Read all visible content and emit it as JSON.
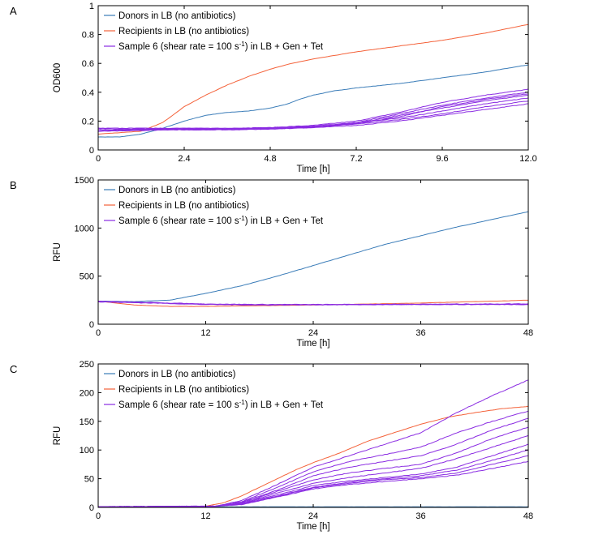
{
  "legend_labels": {
    "donors": "Donors in LB (no antibiotics)",
    "recipients": "Recipients in LB (no antibiotics)",
    "sample_prefix": "Sample 6 (shear rate = 100 s",
    "sample_sup": "-1",
    "sample_suffix": ") in LB + Gen + Tet"
  },
  "colors": {
    "donors": "#3a7cb8",
    "recipients": "#f4623a",
    "sample": "#8a2be2"
  },
  "chart_data": [
    {
      "panel": "A",
      "type": "line",
      "xlabel": "Time [h]",
      "ylabel": "OD600",
      "xlim": [
        0,
        12
      ],
      "ylim": [
        0,
        1
      ],
      "xticks": [
        0,
        2.4,
        4.8,
        7.2,
        9.6,
        12
      ],
      "xtick_labels": [
        "0",
        "2.4",
        "4.8",
        "7.2",
        "9.6",
        "12.0"
      ],
      "yticks": [
        0,
        0.2,
        0.4,
        0.6,
        0.8,
        1
      ],
      "ytick_labels": [
        "0",
        "0.2",
        "0.4",
        "0.6",
        "0.8",
        "1"
      ],
      "legend_position": "top-left",
      "series": [
        {
          "name": "donors",
          "x": [
            0,
            0.6,
            1.2,
            1.8,
            2.4,
            3.0,
            3.6,
            4.2,
            4.8,
            5.3,
            5.6,
            6.0,
            6.6,
            7.2,
            8.4,
            9.6,
            10.8,
            12.0
          ],
          "y": [
            0.09,
            0.09,
            0.11,
            0.15,
            0.2,
            0.24,
            0.26,
            0.27,
            0.29,
            0.32,
            0.35,
            0.38,
            0.41,
            0.43,
            0.46,
            0.5,
            0.54,
            0.59
          ]
        },
        {
          "name": "recipients",
          "x": [
            0,
            0.6,
            1.2,
            1.8,
            2.4,
            3.0,
            3.6,
            4.2,
            4.8,
            5.4,
            6.0,
            7.2,
            8.4,
            9.6,
            10.8,
            12.0
          ],
          "y": [
            0.11,
            0.12,
            0.13,
            0.19,
            0.3,
            0.38,
            0.45,
            0.51,
            0.56,
            0.6,
            0.63,
            0.68,
            0.72,
            0.76,
            0.81,
            0.87
          ]
        },
        {
          "name": "sample",
          "x": [
            0,
            1.2,
            2.4,
            3.6,
            4.8,
            6.0,
            7.2,
            8.4,
            9.6,
            10.8,
            12.0
          ],
          "y": [
            0.15,
            0.15,
            0.15,
            0.15,
            0.155,
            0.17,
            0.2,
            0.26,
            0.33,
            0.38,
            0.42
          ]
        },
        {
          "name": "sample",
          "x": [
            0,
            1.2,
            2.4,
            3.6,
            4.8,
            6.0,
            7.2,
            8.4,
            9.6,
            10.8,
            12.0
          ],
          "y": [
            0.14,
            0.145,
            0.145,
            0.145,
            0.15,
            0.16,
            0.19,
            0.25,
            0.31,
            0.36,
            0.4
          ]
        },
        {
          "name": "sample",
          "x": [
            0,
            1.2,
            2.4,
            3.6,
            4.8,
            6.0,
            7.2,
            8.4,
            9.6,
            10.8,
            12.0
          ],
          "y": [
            0.13,
            0.14,
            0.14,
            0.14,
            0.145,
            0.155,
            0.18,
            0.23,
            0.3,
            0.35,
            0.39
          ]
        },
        {
          "name": "sample",
          "x": [
            0,
            1.2,
            2.4,
            3.6,
            4.8,
            6.0,
            7.2,
            8.4,
            9.6,
            10.8,
            12.0
          ],
          "y": [
            0.14,
            0.14,
            0.145,
            0.145,
            0.15,
            0.16,
            0.185,
            0.24,
            0.29,
            0.34,
            0.38
          ]
        },
        {
          "name": "sample",
          "x": [
            0,
            1.2,
            2.4,
            3.6,
            4.8,
            6.0,
            7.2,
            8.4,
            9.6,
            10.8,
            12.0
          ],
          "y": [
            0.15,
            0.15,
            0.15,
            0.15,
            0.155,
            0.165,
            0.19,
            0.22,
            0.27,
            0.32,
            0.36
          ]
        },
        {
          "name": "sample",
          "x": [
            0,
            1.2,
            2.4,
            3.6,
            4.8,
            6.0,
            7.2,
            8.4,
            9.6,
            10.8,
            12.0
          ],
          "y": [
            0.14,
            0.14,
            0.14,
            0.145,
            0.15,
            0.16,
            0.18,
            0.21,
            0.25,
            0.3,
            0.34
          ]
        },
        {
          "name": "sample",
          "x": [
            0,
            1.2,
            2.4,
            3.6,
            4.8,
            6.0,
            7.2,
            8.4,
            9.6,
            10.8,
            12.0
          ],
          "y": [
            0.13,
            0.135,
            0.14,
            0.14,
            0.145,
            0.155,
            0.17,
            0.2,
            0.24,
            0.28,
            0.32
          ]
        }
      ]
    },
    {
      "panel": "B",
      "type": "line",
      "xlabel": "Time [h]",
      "ylabel": "RFU",
      "xlim": [
        0,
        48
      ],
      "ylim": [
        0,
        1500
      ],
      "xticks": [
        0,
        12,
        24,
        36,
        48
      ],
      "xtick_labels": [
        "0",
        "12",
        "24",
        "36",
        "48"
      ],
      "yticks": [
        0,
        500,
        1000,
        1500
      ],
      "ytick_labels": [
        "0",
        "500",
        "1000",
        "1500"
      ],
      "legend_position": "top-left",
      "series": [
        {
          "name": "donors",
          "x": [
            0,
            4,
            8,
            12,
            16,
            20,
            24,
            28,
            32,
            36,
            40,
            44,
            48
          ],
          "y": [
            240,
            235,
            250,
            320,
            400,
            500,
            610,
            720,
            830,
            920,
            1010,
            1090,
            1170
          ]
        },
        {
          "name": "recipients",
          "x": [
            0,
            4,
            8,
            12,
            16,
            20,
            24,
            30,
            36,
            42,
            48
          ],
          "y": [
            240,
            200,
            185,
            185,
            190,
            195,
            200,
            210,
            220,
            235,
            250
          ]
        },
        {
          "name": "sample",
          "x": [
            0,
            6,
            12,
            18,
            24,
            30,
            36,
            42,
            48
          ],
          "y": [
            240,
            225,
            210,
            205,
            205,
            205,
            205,
            205,
            205
          ]
        },
        {
          "name": "sample",
          "x": [
            0,
            6,
            12,
            18,
            24,
            30,
            36,
            42,
            48
          ],
          "y": [
            232,
            220,
            205,
            200,
            202,
            203,
            205,
            206,
            207
          ]
        },
        {
          "name": "sample",
          "x": [
            0,
            6,
            12,
            18,
            24,
            30,
            36,
            42,
            48
          ],
          "y": [
            236,
            222,
            208,
            203,
            204,
            206,
            208,
            210,
            212
          ]
        }
      ]
    },
    {
      "panel": "C",
      "type": "line",
      "xlabel": "Time [h]",
      "ylabel": "RFU",
      "xlim": [
        0,
        48
      ],
      "ylim": [
        0,
        250
      ],
      "xticks": [
        0,
        12,
        24,
        36,
        48
      ],
      "xtick_labels": [
        "0",
        "12",
        "24",
        "36",
        "48"
      ],
      "yticks": [
        0,
        50,
        100,
        150,
        200,
        250
      ],
      "ytick_labels": [
        "0",
        "50",
        "100",
        "150",
        "200",
        "250"
      ],
      "legend_position": "top-left",
      "series": [
        {
          "name": "donors",
          "x": [
            0,
            12,
            24,
            36,
            48
          ],
          "y": [
            1,
            1,
            1,
            1,
            1
          ]
        },
        {
          "name": "recipients",
          "x": [
            0,
            12,
            14,
            16,
            18,
            20,
            22,
            24,
            27,
            30,
            33,
            36,
            39,
            42,
            45,
            48
          ],
          "y": [
            1,
            2,
            8,
            20,
            35,
            50,
            65,
            78,
            95,
            115,
            130,
            145,
            157,
            165,
            172,
            176
          ]
        },
        {
          "name": "sample",
          "x": [
            0,
            13,
            16,
            20,
            24,
            28,
            32,
            36,
            40,
            44,
            48
          ],
          "y": [
            1,
            2,
            12,
            40,
            70,
            90,
            110,
            130,
            165,
            195,
            222
          ]
        },
        {
          "name": "sample",
          "x": [
            0,
            13,
            16,
            20,
            24,
            28,
            32,
            36,
            40,
            44,
            48
          ],
          "y": [
            1,
            2,
            10,
            35,
            62,
            80,
            92,
            105,
            130,
            150,
            168
          ]
        },
        {
          "name": "sample",
          "x": [
            0,
            13,
            16,
            20,
            24,
            28,
            32,
            36,
            40,
            44,
            48
          ],
          "y": [
            1,
            2,
            9,
            30,
            55,
            70,
            80,
            90,
            110,
            135,
            155
          ]
        },
        {
          "name": "sample",
          "x": [
            0,
            13,
            16,
            20,
            24,
            28,
            32,
            36,
            40,
            44,
            48
          ],
          "y": [
            1,
            2,
            8,
            28,
            48,
            60,
            68,
            75,
            95,
            120,
            140
          ]
        },
        {
          "name": "sample",
          "x": [
            0,
            13,
            16,
            20,
            24,
            28,
            32,
            36,
            40,
            44,
            48
          ],
          "y": [
            1,
            2,
            7,
            25,
            42,
            52,
            60,
            68,
            85,
            105,
            125
          ]
        },
        {
          "name": "sample",
          "x": [
            0,
            13,
            16,
            20,
            24,
            28,
            32,
            36,
            40,
            44,
            48
          ],
          "y": [
            1,
            2,
            7,
            22,
            38,
            46,
            52,
            58,
            70,
            90,
            110
          ]
        },
        {
          "name": "sample",
          "x": [
            0,
            13,
            16,
            20,
            24,
            28,
            32,
            36,
            40,
            44,
            48
          ],
          "y": [
            1,
            2,
            6,
            20,
            35,
            44,
            50,
            55,
            65,
            82,
            100
          ]
        },
        {
          "name": "sample",
          "x": [
            0,
            13,
            16,
            20,
            24,
            28,
            32,
            36,
            40,
            44,
            48
          ],
          "y": [
            1,
            2,
            6,
            19,
            34,
            42,
            48,
            52,
            60,
            75,
            90
          ]
        },
        {
          "name": "sample",
          "x": [
            0,
            13,
            16,
            20,
            24,
            28,
            32,
            36,
            40,
            44,
            48
          ],
          "y": [
            1,
            2,
            5,
            18,
            32,
            40,
            45,
            50,
            56,
            68,
            80
          ]
        }
      ]
    }
  ]
}
